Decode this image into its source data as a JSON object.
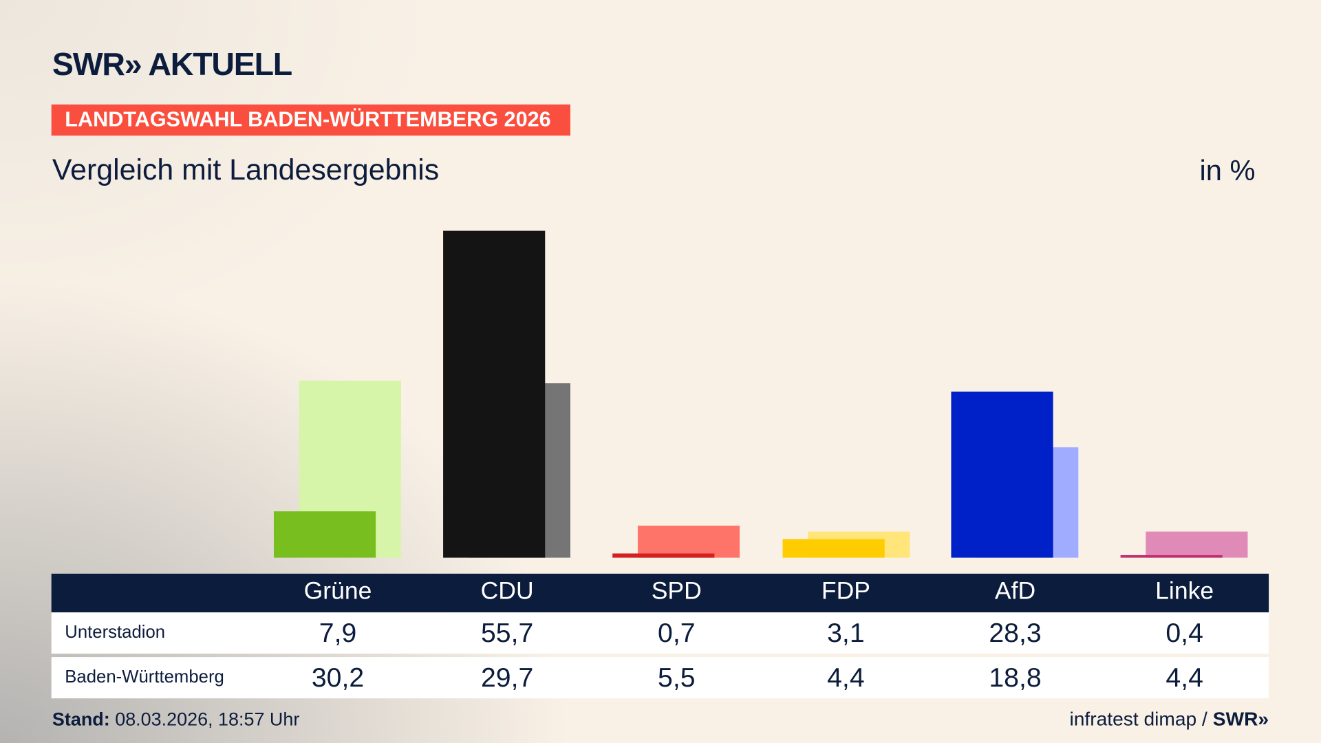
{
  "header": {
    "logo_text": "SWR» AKTUELL",
    "banner": "LANDTAGSWAHL BADEN-WÜRTTEMBERG 2026",
    "subtitle": "Vergleich mit Landesergebnis",
    "unit": "in %"
  },
  "chart_data": {
    "type": "bar",
    "categories": [
      "Grüne",
      "CDU",
      "SPD",
      "FDP",
      "AfD",
      "Linke"
    ],
    "series": [
      {
        "name": "Unterstadion",
        "values": [
          7.9,
          55.7,
          0.7,
          3.1,
          28.3,
          0.4
        ],
        "colors": [
          "#78be1e",
          "#141414",
          "#d42020",
          "#ffcc00",
          "#0020c8",
          "#c0306e"
        ]
      },
      {
        "name": "Baden-Württemberg",
        "values": [
          30.2,
          29.7,
          5.5,
          4.4,
          18.8,
          4.4
        ],
        "colors": [
          "#d6f5a8",
          "#757575",
          "#ff7468",
          "#ffe57a",
          "#a0acff",
          "#e08ab8"
        ]
      }
    ],
    "ylim": [
      0,
      55.7
    ],
    "grid": false
  },
  "table": {
    "headers": [
      "Grüne",
      "CDU",
      "SPD",
      "FDP",
      "AfD",
      "Linke"
    ],
    "rows": [
      {
        "label": "Unterstadion",
        "values": [
          "7,9",
          "55,7",
          "0,7",
          "3,1",
          "28,3",
          "0,4"
        ]
      },
      {
        "label": "Baden-Württemberg",
        "values": [
          "30,2",
          "29,7",
          "5,5",
          "4,4",
          "18,8",
          "4,4"
        ]
      }
    ]
  },
  "footer": {
    "stand_label": "Stand:",
    "stand_value": " 08.03.2026, 18:57 Uhr",
    "source": "infratest dimap / ",
    "source_logo": "SWR»"
  }
}
